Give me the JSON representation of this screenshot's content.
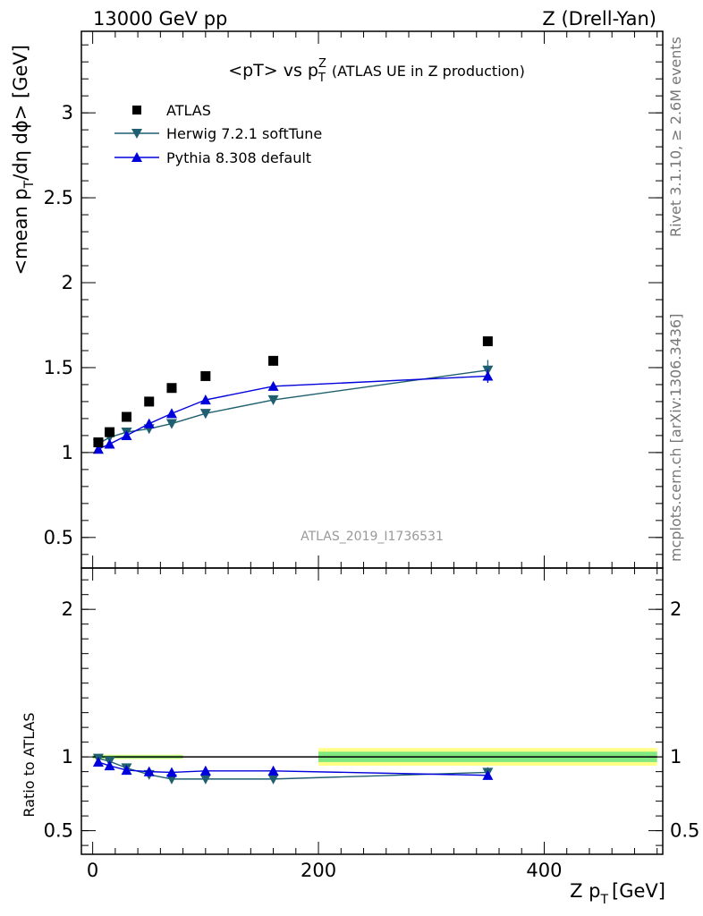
{
  "header": {
    "energy": "13000 GeV pp",
    "process": "Z (Drell-Yan)"
  },
  "plot_title": {
    "main": "<pT> vs p",
    "sup": "Z",
    "sub": "T",
    "suffix": "(ATLAS UE in Z production)"
  },
  "side": {
    "rivet": "Rivet 3.1.10, ≥ 2.6M events",
    "mcplots": "mcplots.cern.ch [arXiv:1306.3436]"
  },
  "watermark": "ATLAS_2019_I1736531",
  "colors": {
    "atlas": "#000000",
    "herwig": "#1f5f6f",
    "pythia": "#0000dd",
    "band_inner": "#7fe87f",
    "band_outer": "#ffff88"
  },
  "chart_data": [
    {
      "type": "scatter",
      "panel": "main",
      "ylabel": "<mean p_T/dη dϕ> [GeV]",
      "ylim": [
        0.32,
        3.48
      ],
      "yticks": [
        "0.5",
        "1",
        "1.5",
        "2",
        "2.5",
        "3"
      ],
      "xlim": [
        -10,
        505
      ],
      "legend_position": "top-left",
      "x": [
        5,
        15,
        30,
        50,
        70,
        100,
        160,
        350
      ],
      "series": [
        {
          "name": "ATLAS",
          "values": [
            1.06,
            1.12,
            1.21,
            1.3,
            1.38,
            1.45,
            1.54,
            1.655
          ],
          "marker": "square"
        },
        {
          "name": "Herwig 7.2.1 softTune",
          "values": [
            1.05,
            1.09,
            1.12,
            1.14,
            1.17,
            1.23,
            1.31,
            1.485
          ],
          "errors": [
            0,
            0,
            0,
            0,
            0,
            0,
            0,
            0.06
          ],
          "marker": "triangle-down"
        },
        {
          "name": "Pythia 8.308 default",
          "values": [
            1.02,
            1.05,
            1.1,
            1.17,
            1.23,
            1.31,
            1.39,
            1.45
          ],
          "errors": [
            0,
            0,
            0,
            0,
            0,
            0,
            0.02,
            0.04
          ],
          "marker": "triangle-up"
        }
      ]
    },
    {
      "type": "scatter",
      "panel": "ratio",
      "ylabel": "Ratio to ATLAS",
      "ylim": [
        0.34,
        2.28
      ],
      "yticks": [
        "0.5",
        "1",
        "2"
      ],
      "xlabel": "Z p_T [GeV]",
      "xticks": [
        "0",
        "200",
        "400"
      ],
      "xlim": [
        -10,
        505
      ],
      "x": [
        5,
        15,
        30,
        50,
        70,
        100,
        160,
        350
      ],
      "reference_band": [
        {
          "x_from": 0,
          "x_to": 80,
          "inner": 0.01,
          "outer": 0.015
        },
        {
          "x_from": 200,
          "x_to": 500,
          "inner": 0.035,
          "outer": 0.06
        }
      ],
      "series": [
        {
          "name": "Herwig 7.2.1 softTune",
          "values": [
            0.99,
            0.97,
            0.925,
            0.88,
            0.85,
            0.85,
            0.85,
            0.895
          ],
          "errors": [
            0,
            0,
            0,
            0,
            0,
            0,
            0,
            0.035
          ]
        },
        {
          "name": "Pythia 8.308 default",
          "values": [
            0.965,
            0.94,
            0.91,
            0.9,
            0.895,
            0.905,
            0.905,
            0.875
          ],
          "errors": [
            0,
            0,
            0,
            0,
            0,
            0,
            0,
            0.025
          ]
        }
      ]
    }
  ]
}
